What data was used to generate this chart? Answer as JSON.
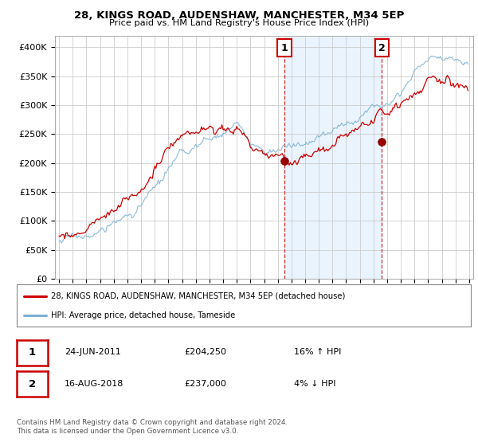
{
  "title1": "28, KINGS ROAD, AUDENSHAW, MANCHESTER, M34 5EP",
  "title2": "Price paid vs. HM Land Registry's House Price Index (HPI)",
  "legend_line1": "28, KINGS ROAD, AUDENSHAW, MANCHESTER, M34 5EP (detached house)",
  "legend_line2": "HPI: Average price, detached house, Tameside",
  "footnote": "Contains HM Land Registry data © Crown copyright and database right 2024.\nThis data is licensed under the Open Government Licence v3.0.",
  "transaction1_date": "24-JUN-2011",
  "transaction1_price": "£204,250",
  "transaction1_hpi": "16% ↑ HPI",
  "transaction2_date": "16-AUG-2018",
  "transaction2_price": "£237,000",
  "transaction2_hpi": "4% ↓ HPI",
  "sale1_x": 2011.48,
  "sale1_y": 204250,
  "sale2_x": 2018.62,
  "sale2_y": 237000,
  "hpi_color": "#7bafd4",
  "price_color": "#cc0000",
  "sale_dot_color": "#990000",
  "background_color": "#ffffff",
  "grid_color": "#cccccc",
  "highlight_color": "#ddeeff",
  "vline_color": "#cc0000",
  "ylim": [
    0,
    420000
  ],
  "xlim_start": 1994.7,
  "xlim_end": 2025.3
}
